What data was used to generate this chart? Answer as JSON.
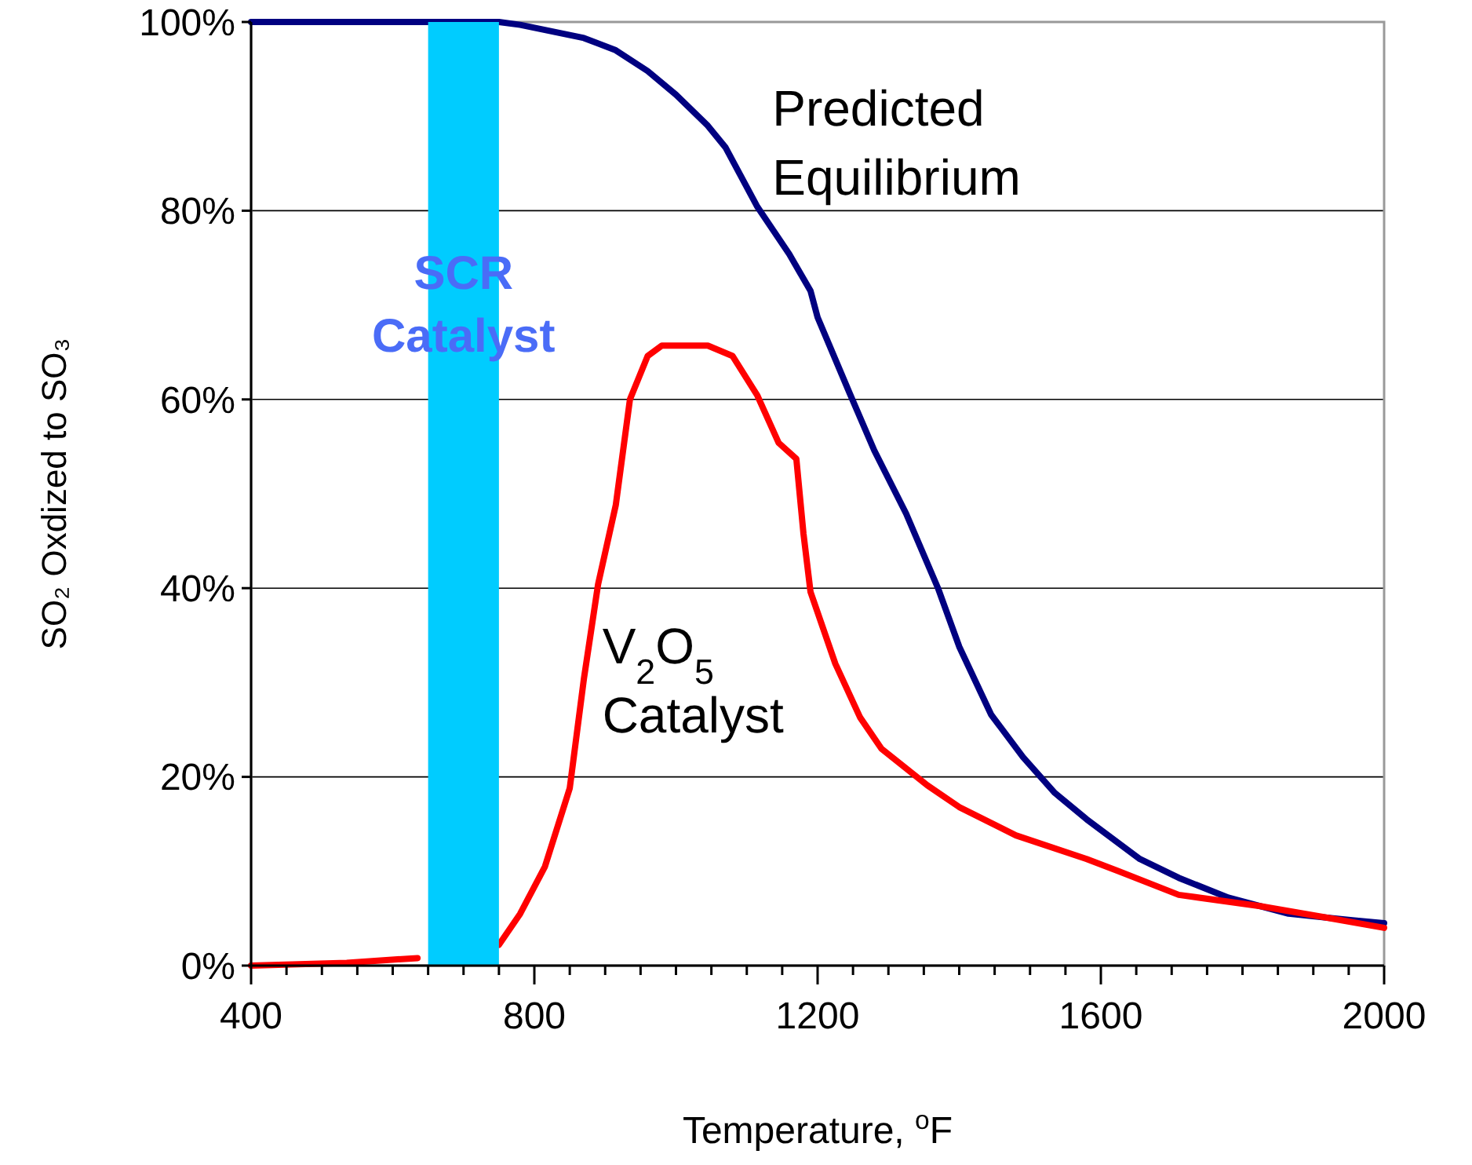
{
  "chart_data": {
    "type": "line",
    "xlabel": "Temperature, $^{o}$F",
    "ylabel": "SO₂ Oxdized to SO₃",
    "xlim": [
      400,
      2000
    ],
    "xticks": [
      400,
      {
        "value": 450,
        "label": null
      },
      {
        "value": 500,
        "label": null
      },
      {
        "value": 550,
        "label": null
      },
      {
        "value": 600,
        "label": null
      },
      {
        "value": 650,
        "label": null
      },
      {
        "value": 700,
        "label": null
      },
      {
        "value": 750,
        "label": null
      },
      800,
      {
        "value": 850,
        "label": null
      },
      {
        "value": 900,
        "label": null
      },
      {
        "value": 950,
        "label": null
      },
      {
        "value": 1000,
        "label": null
      },
      {
        "value": 1050,
        "label": null
      },
      {
        "value": 1100,
        "label": null
      },
      {
        "value": 1150,
        "label": null
      },
      1200,
      {
        "value": 1250,
        "label": null
      },
      {
        "value": 1300,
        "label": null
      },
      {
        "value": 1350,
        "label": null
      },
      {
        "value": 1400,
        "label": null
      },
      {
        "value": 1450,
        "label": null
      },
      {
        "value": 1500,
        "label": null
      },
      {
        "value": 1550,
        "label": null
      },
      1600,
      {
        "value": 1650,
        "label": null
      },
      {
        "value": 1700,
        "label": null
      },
      {
        "value": 1750,
        "label": null
      },
      {
        "value": 1800,
        "label": null
      },
      {
        "value": 1850,
        "label": null
      },
      {
        "value": 1900,
        "label": null
      },
      {
        "value": 1950,
        "label": null
      },
      2000
    ],
    "ylim": [
      0,
      100
    ],
    "yticks": [
      {
        "value": 0,
        "label": "0%"
      },
      {
        "value": 20,
        "label": "20%"
      },
      {
        "value": 40,
        "label": "40%"
      },
      {
        "value": 60,
        "label": "60%"
      },
      {
        "value": 80,
        "label": "80%"
      },
      {
        "value": 100,
        "label": "100%"
      }
    ],
    "grid": "y",
    "marker": "none",
    "line_style": "solid",
    "bands": [
      {
        "axis": "x",
        "from": 650,
        "to": 750,
        "label": "SCR Catalyst",
        "color": "#00ccff"
      }
    ],
    "series": [
      {
        "name": "Predicted Equilibrium",
        "color": "#000080",
        "x": [
          400,
          750,
          780,
          870,
          915,
          960,
          1000,
          1045,
          1070,
          1115,
          1160,
          1190,
          1200,
          1245,
          1280,
          1325,
          1370,
          1400,
          1445,
          1490,
          1535,
          1580,
          1655,
          1710,
          1780,
          1865,
          1955,
          2000
        ],
        "values": [
          100,
          100,
          99.7,
          98.3,
          97,
          94.8,
          92.3,
          89,
          86.7,
          80.4,
          75.4,
          71.5,
          68.7,
          60.7,
          54.6,
          47.9,
          40,
          33.8,
          26.6,
          22.1,
          18.3,
          15.5,
          11.3,
          9.3,
          7.2,
          5.5,
          4.8,
          4.5
        ]
      },
      {
        "name": "V$_{2}$O$_{5}$ Catalyst",
        "color": "#ff0000",
        "x": [
          400,
          535,
          635,
          690,
          750,
          780,
          815,
          850,
          870,
          890,
          915,
          935,
          960,
          980,
          1045,
          1080,
          1115,
          1145,
          1170,
          1180,
          1190,
          1225,
          1260,
          1290,
          1355,
          1400,
          1480,
          1580,
          1625,
          1710,
          1825,
          1910,
          2000
        ],
        "values": [
          0,
          0.3,
          0.8,
          null,
          2.2,
          5.5,
          10.5,
          18.8,
          30.4,
          40.4,
          48.8,
          60,
          64.6,
          65.7,
          65.7,
          64.6,
          60.4,
          55.4,
          53.7,
          45.8,
          39.6,
          32,
          26.3,
          23,
          19.1,
          16.8,
          13.8,
          11.3,
          10,
          7.5,
          6.3,
          5.2,
          4
        ]
      }
    ]
  }
}
